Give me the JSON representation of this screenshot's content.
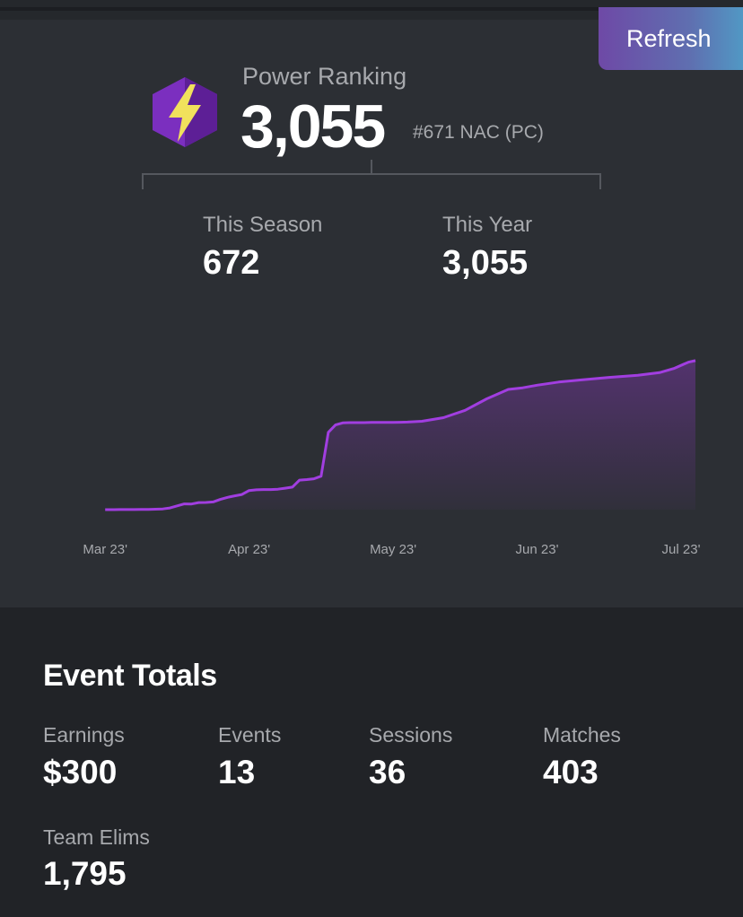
{
  "header": {
    "refresh_label": "Refresh"
  },
  "power_ranking": {
    "label": "Power Ranking",
    "value": "3,055",
    "rank": "#671 NAC (PC)",
    "badge_icon": "lightning-bolt-icon",
    "badge_color": "#7b2fbf",
    "bolt_color": "#f1e15c"
  },
  "stats": [
    {
      "label": "This Season",
      "value": "672"
    },
    {
      "label": "This Year",
      "value": "3,055"
    }
  ],
  "chart_data": {
    "type": "area",
    "line_color": "#a13ee0",
    "x_tick_labels": [
      "Mar 23'",
      "Apr 23'",
      "May 23'",
      "Jun 23'",
      "Jul 23'"
    ],
    "x": [
      0,
      0.05,
      0.1,
      0.15,
      0.2,
      0.25,
      0.3,
      0.35,
      0.4,
      0.45,
      0.5,
      0.55,
      0.6,
      0.65,
      0.7,
      0.75,
      0.8,
      0.85,
      0.9,
      0.95,
      1.0,
      1.05,
      1.1,
      1.15,
      1.2,
      1.25,
      1.3,
      1.35,
      1.4,
      1.45,
      1.5,
      1.55,
      1.6,
      1.65,
      1.7,
      1.75,
      1.8,
      1.85,
      1.9,
      1.95,
      2.0,
      2.05,
      2.1,
      2.2,
      2.35,
      2.5,
      2.65,
      2.8,
      2.9,
      3.0,
      3.15,
      3.3,
      3.5,
      3.7,
      3.85,
      3.95,
      4.05,
      4.1
    ],
    "y": [
      0,
      0,
      1,
      1,
      2,
      3,
      5,
      8,
      14,
      32,
      72,
      110,
      108,
      135,
      138,
      148,
      195,
      235,
      265,
      290,
      365,
      380,
      385,
      385,
      392,
      410,
      430,
      565,
      575,
      590,
      640,
      1480,
      1620,
      1660,
      1665,
      1665,
      1665,
      1668,
      1670,
      1670,
      1670,
      1672,
      1675,
      1690,
      1760,
      1900,
      2120,
      2300,
      2330,
      2380,
      2440,
      2480,
      2530,
      2570,
      2620,
      2700,
      2820,
      2850
    ],
    "ylim": [
      0,
      3055
    ],
    "xlim": [
      -0.4,
      4.1
    ]
  },
  "event_totals": {
    "title": "Event Totals",
    "items": [
      {
        "label": "Earnings",
        "value": "$300"
      },
      {
        "label": "Events",
        "value": "13"
      },
      {
        "label": "Sessions",
        "value": "36"
      },
      {
        "label": "Matches",
        "value": "403"
      },
      {
        "label": "Team Elims",
        "value": "1,795"
      }
    ]
  }
}
